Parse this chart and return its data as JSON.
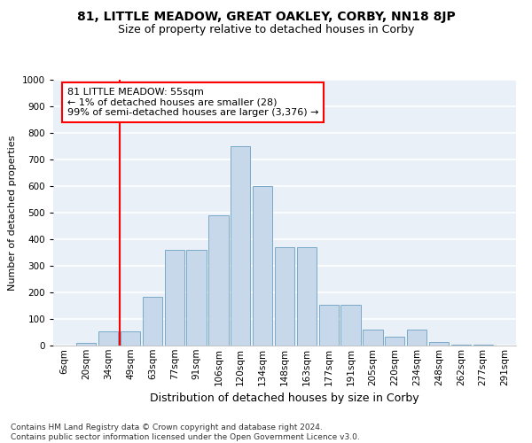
{
  "title": "81, LITTLE MEADOW, GREAT OAKLEY, CORBY, NN18 8JP",
  "subtitle": "Size of property relative to detached houses in Corby",
  "xlabel": "Distribution of detached houses by size in Corby",
  "ylabel": "Number of detached properties",
  "bar_color": "#c8d8eb",
  "bar_edge_color": "#7aaac8",
  "categories": [
    "6sqm",
    "20sqm",
    "34sqm",
    "49sqm",
    "63sqm",
    "77sqm",
    "91sqm",
    "106sqm",
    "120sqm",
    "134sqm",
    "148sqm",
    "163sqm",
    "177sqm",
    "191sqm",
    "205sqm",
    "220sqm",
    "234sqm",
    "248sqm",
    "262sqm",
    "277sqm",
    "291sqm"
  ],
  "values": [
    0,
    10,
    55,
    55,
    185,
    360,
    360,
    490,
    750,
    600,
    370,
    370,
    155,
    155,
    60,
    35,
    60,
    15,
    5,
    5,
    0
  ],
  "vline_x_idx": 3,
  "annotation_text": "81 LITTLE MEADOW: 55sqm\n← 1% of detached houses are smaller (28)\n99% of semi-detached houses are larger (3,376) →",
  "annotation_box_color": "white",
  "annotation_box_edge_color": "red",
  "vline_color": "red",
  "ylim": [
    0,
    1000
  ],
  "yticks": [
    0,
    100,
    200,
    300,
    400,
    500,
    600,
    700,
    800,
    900,
    1000
  ],
  "bg_color": "#eaf0f8",
  "grid_color": "white",
  "footer": "Contains HM Land Registry data © Crown copyright and database right 2024.\nContains public sector information licensed under the Open Government Licence v3.0.",
  "title_fontsize": 10,
  "subtitle_fontsize": 9,
  "xlabel_fontsize": 9,
  "ylabel_fontsize": 8,
  "tick_fontsize": 7.5,
  "annotation_fontsize": 8,
  "footer_fontsize": 6.5
}
